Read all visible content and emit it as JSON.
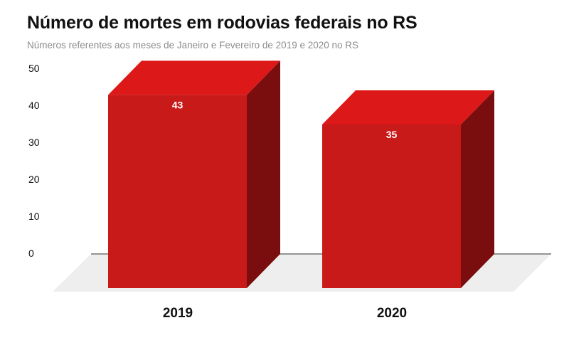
{
  "chart_data": {
    "type": "bar",
    "title": "Número de mortes em rodovias federais no RS",
    "subtitle": "Números referentes aos meses de Janeiro e Fevereiro de 2019 e 2020 no RS",
    "categories": [
      "2019",
      "2020"
    ],
    "values": [
      43,
      35
    ],
    "data_labels": [
      "43",
      "35"
    ],
    "y_ticks": [
      "0",
      "10",
      "20",
      "30",
      "40",
      "50"
    ],
    "ylim": [
      0,
      50
    ],
    "xlabel": "",
    "ylabel": "",
    "grid": false,
    "style": "3d",
    "colors": {
      "front": "#c91a1a",
      "top": "#dd1818",
      "side": "#7a0e0e",
      "floor": "#eeeeee",
      "axis": "#333333"
    }
  }
}
